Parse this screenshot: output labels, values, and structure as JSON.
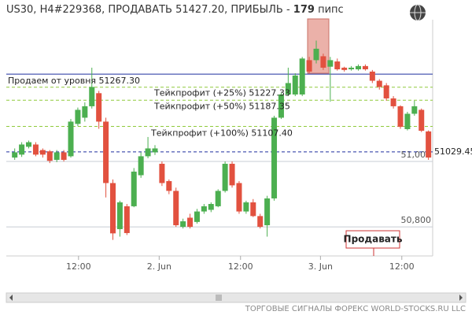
{
  "chart_data": {
    "type": "candlestick",
    "title": "US30, H4#229368, ПРОДАВАТЬ 51427.20, ПРИБЫЛЬ -",
    "profit": "179",
    "profit_unit": "пипс",
    "open": [
      51012,
      51021,
      51045,
      51052,
      51035,
      51031,
      51005,
      51028,
      51016,
      51115,
      51134,
      51169,
      51209,
      51122,
      50934,
      50793,
      50863,
      50863,
      50958,
      51016,
      51028,
      50993,
      50940,
      50910,
      50800,
      50828,
      50815,
      50847,
      50852,
      50863,
      50910,
      50993,
      50934,
      50847,
      50875,
      50833,
      50805,
      50887,
      51134,
      51205,
      51205,
      51205,
      51310,
      51310,
      51322,
      51290,
      51306,
      51287,
      51282,
      51282,
      51292,
      51275,
      51247,
      51233,
      51193,
      51169,
      51099,
      51146,
      51158,
      51092
    ],
    "high": [
      51040,
      51059,
      51064,
      51059,
      51040,
      51035,
      51035,
      51035,
      51130,
      51165,
      51181,
      51287,
      51216,
      51134,
      50945,
      50880,
      50870,
      50980,
      51028,
      51075,
      51050,
      51000,
      50945,
      50920,
      50825,
      50840,
      50855,
      50870,
      50875,
      50915,
      51000,
      51000,
      50940,
      50880,
      50885,
      50840,
      50895,
      51140,
      51210,
      51287,
      51270,
      51320,
      51320,
      51370,
      51330,
      51320,
      51315,
      51290,
      51292,
      51297,
      51297,
      51280,
      51252,
      51240,
      51200,
      51172,
      51152,
      51186,
      51162,
      51095
    ],
    "low": [
      51005,
      51014,
      51040,
      51016,
      51012,
      50995,
      50998,
      51000,
      51012,
      51108,
      51122,
      51162,
      51100,
      50890,
      50760,
      50770,
      50775,
      50860,
      50950,
      51010,
      51020,
      50925,
      50900,
      50800,
      50795,
      50795,
      50810,
      50840,
      50845,
      50860,
      50905,
      50920,
      50840,
      50840,
      50830,
      50795,
      50770,
      50880,
      51130,
      51200,
      51200,
      51200,
      51270,
      51300,
      51280,
      51183,
      51278,
      51275,
      51278,
      51278,
      51278,
      51240,
      51220,
      51186,
      51162,
      51100,
      51095,
      51140,
      51090,
      51005
    ],
    "close": [
      51028,
      51052,
      51059,
      51021,
      51021,
      51002,
      51028,
      51005,
      51122,
      51158,
      51169,
      51228,
      51122,
      50934,
      50780,
      50875,
      50781,
      50969,
      51016,
      51040,
      51040,
      50934,
      50910,
      50805,
      50817,
      50800,
      50847,
      50863,
      50870,
      50910,
      50993,
      50927,
      50847,
      50875,
      50833,
      50800,
      50887,
      51134,
      51205,
      51240,
      51263,
      51315,
      51275,
      51345,
      51287,
      51310,
      51282,
      51280,
      51287,
      51292,
      51282,
      51247,
      51228,
      51193,
      51169,
      51106,
      51146,
      51169,
      51094,
      51012
    ],
    "up_color": "#4caf50",
    "down_color": "#e2513f",
    "xlim": [
      -1.2,
      59.6
    ],
    "xticks": [
      {
        "value": 9.1,
        "label": "12:00"
      },
      {
        "value": 20.6,
        "label": "2. Jun"
      },
      {
        "value": 32.2,
        "label": "12:00"
      },
      {
        "value": 43.6,
        "label": "3. Jun"
      },
      {
        "value": 55.2,
        "label": "12:00"
      }
    ],
    "ylim": [
      50711,
      51470
    ],
    "yticks": [
      {
        "value": 50800,
        "label": "50,800"
      },
      {
        "value": 51000,
        "label": "51,000"
      }
    ],
    "grid": true,
    "levels": [
      {
        "label": "Продаем от уровня 51267.30",
        "value": 51267.3,
        "color": "#1f2f9f",
        "style": "solid"
      },
      {
        "label": "Тейкпрофит (+25%) 51227.33",
        "value": 51227.33,
        "color": "#8fca3c",
        "style": "dashed"
      },
      {
        "label": "Тейкпрофит (+50%) 51187.35",
        "value": 51187.35,
        "color": "#8fca3c",
        "style": "dashed"
      },
      {
        "label": "Тейкпрофит (+100%) 51107.40",
        "value": 51107.4,
        "color": "#8fca3c",
        "style": "dashed"
      },
      {
        "label": "51029.45",
        "value": 51029.45,
        "color": "#1f2f9f",
        "style": "dashed"
      }
    ],
    "button": "Продавать",
    "footer": "ТОРГОВЫЕ СИГНАЛЫ ФОРЕКС WORLD-STOCKS.RU LLC"
  }
}
